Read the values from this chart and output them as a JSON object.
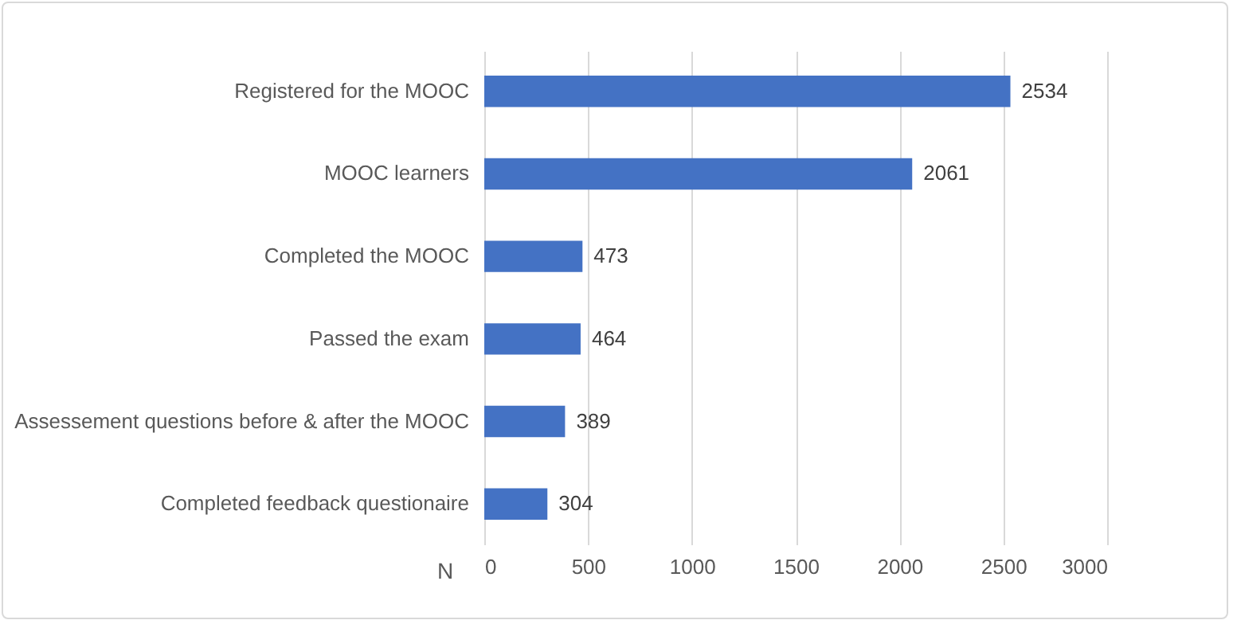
{
  "chart_data": {
    "type": "bar",
    "orientation": "horizontal",
    "xlabel": "N",
    "categories": [
      "Registered for the MOOC",
      "MOOC learners",
      "Completed the MOOC",
      "Passed the exam",
      "Assessement questions before & after the MOOC",
      "Completed feedback questionaire"
    ],
    "values": [
      2534,
      2061,
      473,
      464,
      389,
      304
    ],
    "color": "#4472c4",
    "xlim": [
      0,
      3000
    ],
    "xticks": [
      0,
      500,
      1000,
      1500,
      2000,
      2500,
      3000
    ],
    "grid": "x",
    "data_labels": true
  }
}
